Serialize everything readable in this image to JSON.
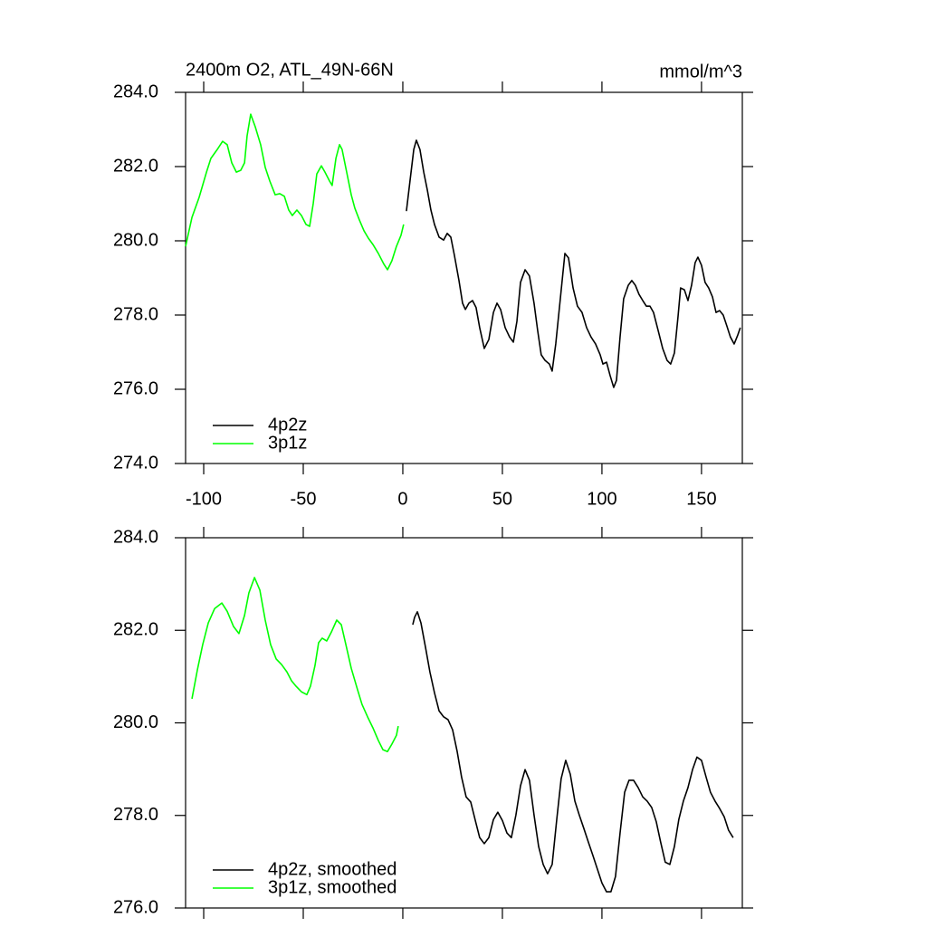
{
  "chart_data": [
    {
      "type": "line",
      "title": "2400m O2, ATL_49N-66N",
      "units": "mmol/m^3",
      "xlim": [
        -109.1,
        170.5
      ],
      "xticks": [
        -100,
        -50,
        0,
        50,
        100,
        150
      ],
      "ylim": [
        274,
        284
      ],
      "yticks": [
        {
          "value": 274,
          "label": "274.0"
        },
        {
          "value": 276,
          "label": "276.0"
        },
        {
          "value": 278,
          "label": "278.0"
        },
        {
          "value": 280,
          "label": "280.0"
        },
        {
          "value": 282,
          "label": "282.0"
        },
        {
          "value": 284,
          "label": "284.0"
        }
      ],
      "legend": "lower left",
      "series": [
        {
          "name": "4p2z",
          "color": "#000000",
          "x": [
            1.8,
            3.6,
            5.5,
            6.8,
            8.6,
            10.5,
            12.3,
            14.1,
            15.9,
            18.2,
            20.5,
            22.3,
            24.1,
            25.9,
            28.2,
            30.0,
            31.4,
            33.2,
            35.0,
            36.8,
            38.6,
            40.9,
            43.2,
            45.5,
            47.3,
            49.1,
            51.4,
            53.6,
            55.5,
            57.3,
            59.1,
            61.4,
            63.6,
            65.9,
            67.7,
            69.5,
            71.4,
            73.6,
            75.0,
            76.8,
            79.1,
            81.4,
            83.2,
            85.5,
            87.7,
            90.0,
            92.3,
            94.5,
            96.8,
            99.1,
            100.5,
            102.3,
            104.1,
            105.9,
            107.3,
            109.1,
            110.9,
            113.2,
            115.0,
            116.8,
            118.6,
            120.5,
            122.3,
            124.1,
            125.9,
            128.2,
            130.5,
            132.7,
            134.5,
            136.4,
            138.2,
            139.5,
            141.4,
            143.2,
            145.0,
            146.8,
            148.2,
            150.0,
            151.8,
            153.6,
            155.5,
            157.3,
            159.1,
            160.9,
            162.7,
            164.5,
            166.4,
            168.2,
            169.5
          ],
          "values": [
            280.8,
            281.61,
            282.46,
            282.71,
            282.46,
            281.85,
            281.37,
            280.83,
            280.44,
            280.1,
            280.02,
            280.2,
            280.1,
            279.61,
            278.93,
            278.32,
            278.15,
            278.32,
            278.39,
            278.2,
            277.66,
            277.1,
            277.34,
            278.07,
            278.32,
            278.15,
            277.66,
            277.41,
            277.27,
            277.83,
            278.88,
            279.22,
            279.05,
            278.32,
            277.59,
            276.93,
            276.78,
            276.68,
            276.49,
            277.22,
            278.44,
            279.66,
            279.54,
            278.73,
            278.24,
            278.07,
            277.66,
            277.41,
            277.22,
            276.93,
            276.68,
            276.73,
            276.37,
            276.05,
            276.24,
            277.41,
            278.44,
            278.8,
            278.93,
            278.8,
            278.56,
            278.39,
            278.24,
            278.24,
            278.07,
            277.59,
            277.1,
            276.78,
            276.68,
            276.98,
            277.95,
            278.73,
            278.68,
            278.39,
            278.8,
            279.41,
            279.56,
            279.34,
            278.88,
            278.73,
            278.49,
            278.07,
            278.12,
            278.0,
            277.71,
            277.41,
            277.22,
            277.46,
            277.66
          ]
        },
        {
          "name": "3p1z",
          "color": "#00ff00",
          "x": [
            -109.1,
            -105.9,
            -102.3,
            -98.6,
            -96.4,
            -93.2,
            -90.5,
            -88.2,
            -85.9,
            -83.6,
            -81.4,
            -79.5,
            -78.2,
            -76.4,
            -74.1,
            -71.4,
            -69.1,
            -66.8,
            -64.1,
            -61.8,
            -59.5,
            -57.3,
            -55.5,
            -53.2,
            -50.9,
            -48.6,
            -46.8,
            -45.0,
            -43.2,
            -40.9,
            -39.1,
            -36.8,
            -35.5,
            -33.6,
            -31.8,
            -30.5,
            -28.2,
            -25.9,
            -24.1,
            -21.8,
            -19.5,
            -17.3,
            -15.0,
            -12.3,
            -9.5,
            -7.7,
            -5.5,
            -3.2,
            -0.9,
            0.4
          ],
          "values": [
            279.85,
            280.63,
            281.17,
            281.85,
            282.22,
            282.46,
            282.68,
            282.59,
            282.1,
            281.85,
            281.9,
            282.1,
            282.83,
            283.41,
            283.07,
            282.59,
            281.98,
            281.61,
            281.24,
            281.27,
            281.2,
            280.83,
            280.68,
            280.83,
            280.68,
            280.44,
            280.39,
            281.0,
            281.8,
            282.02,
            281.85,
            281.61,
            281.49,
            282.22,
            282.59,
            282.46,
            281.85,
            281.24,
            280.88,
            280.56,
            280.27,
            280.07,
            279.9,
            279.66,
            279.37,
            279.22,
            279.46,
            279.85,
            280.15,
            280.44
          ]
        }
      ]
    },
    {
      "type": "line",
      "xlim": [
        -109.1,
        170.5
      ],
      "xticks": [
        -100,
        -50,
        0,
        50,
        100,
        150
      ],
      "ylim": [
        276,
        284
      ],
      "yticks": [
        {
          "value": 276,
          "label": "276.0"
        },
        {
          "value": 278,
          "label": "278.0"
        },
        {
          "value": 280,
          "label": "280.0"
        },
        {
          "value": 282,
          "label": "282.0"
        },
        {
          "value": 284,
          "label": "284.0"
        }
      ],
      "legend": "lower left",
      "series": [
        {
          "name": "4p2z, smoothed",
          "color": "#000000",
          "x": [
            5.0,
            5.9,
            7.3,
            9.1,
            11.4,
            13.6,
            15.9,
            18.2,
            20.5,
            22.7,
            25.0,
            27.3,
            29.5,
            31.8,
            34.1,
            36.4,
            38.6,
            40.9,
            43.2,
            45.5,
            47.7,
            50.0,
            52.3,
            54.5,
            56.8,
            59.1,
            61.4,
            63.6,
            65.9,
            68.2,
            70.5,
            72.7,
            75.0,
            77.3,
            79.5,
            81.8,
            84.1,
            86.4,
            88.6,
            90.9,
            93.2,
            95.5,
            97.7,
            100.0,
            102.3,
            104.5,
            106.8,
            109.1,
            111.4,
            113.6,
            115.9,
            118.2,
            120.5,
            122.7,
            125.0,
            127.3,
            129.5,
            131.8,
            134.1,
            136.4,
            138.6,
            140.9,
            143.2,
            145.5,
            147.7,
            150.0,
            152.3,
            154.5,
            156.8,
            159.1,
            161.4,
            163.6,
            165.9
          ],
          "values": [
            282.12,
            282.28,
            282.4,
            282.16,
            281.63,
            281.1,
            280.65,
            280.26,
            280.13,
            280.07,
            279.85,
            279.38,
            278.83,
            278.4,
            278.29,
            277.89,
            277.52,
            277.39,
            277.52,
            277.91,
            278.07,
            277.89,
            277.62,
            277.52,
            278.01,
            278.64,
            278.99,
            278.76,
            278.01,
            277.33,
            276.94,
            276.74,
            276.94,
            277.91,
            278.79,
            279.19,
            278.89,
            278.31,
            278.01,
            277.72,
            277.42,
            277.13,
            276.84,
            276.54,
            276.35,
            276.35,
            276.68,
            277.62,
            278.5,
            278.76,
            278.76,
            278.6,
            278.4,
            278.31,
            278.17,
            277.86,
            277.42,
            276.99,
            276.94,
            277.33,
            277.91,
            278.31,
            278.6,
            278.99,
            279.26,
            279.19,
            278.83,
            278.5,
            278.31,
            278.15,
            277.97,
            277.68,
            277.52
          ]
        },
        {
          "name": "3p1z, smoothed",
          "color": "#00ff00",
          "x": [
            -105.9,
            -103.2,
            -100.5,
            -97.7,
            -94.5,
            -90.9,
            -88.2,
            -85.0,
            -82.3,
            -79.5,
            -77.3,
            -74.5,
            -71.8,
            -69.1,
            -66.4,
            -63.6,
            -60.9,
            -58.2,
            -55.9,
            -53.6,
            -50.9,
            -48.2,
            -46.4,
            -44.1,
            -42.3,
            -40.5,
            -38.2,
            -35.9,
            -33.2,
            -30.9,
            -28.6,
            -25.9,
            -22.7,
            -20.5,
            -17.7,
            -15.0,
            -12.3,
            -10.0,
            -7.7,
            -5.5,
            -3.2,
            -2.3
          ],
          "values": [
            280.52,
            281.14,
            281.69,
            282.16,
            282.47,
            282.59,
            282.41,
            282.08,
            281.93,
            282.32,
            282.81,
            283.14,
            282.87,
            282.22,
            281.69,
            281.38,
            281.26,
            281.1,
            280.91,
            280.79,
            280.67,
            280.61,
            280.79,
            281.24,
            281.73,
            281.83,
            281.77,
            281.96,
            282.22,
            282.12,
            281.69,
            281.18,
            280.71,
            280.4,
            280.13,
            279.89,
            279.62,
            279.42,
            279.38,
            279.54,
            279.73,
            279.93
          ]
        }
      ]
    }
  ]
}
